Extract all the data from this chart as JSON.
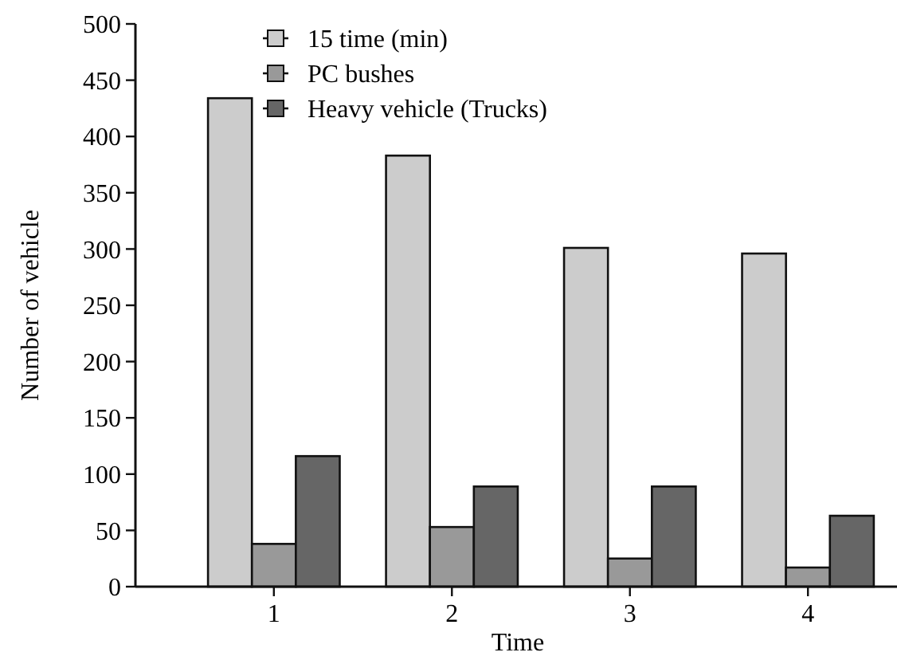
{
  "chart_data": {
    "type": "bar",
    "xlabel": "Time",
    "ylabel": "Number of vehicle",
    "categories": [
      "1",
      "2",
      "3",
      "4"
    ],
    "series": [
      {
        "name": "15 time (min)",
        "color": "#cccccc",
        "values": [
          434,
          383,
          301,
          296
        ]
      },
      {
        "name": "PC bushes",
        "color": "#999999",
        "values": [
          38,
          53,
          25,
          17
        ]
      },
      {
        "name": "Heavy vehicle (Trucks)",
        "color": "#666666",
        "values": [
          116,
          89,
          89,
          63
        ]
      }
    ],
    "ylim": [
      0,
      500
    ],
    "yticks": [
      0,
      50,
      100,
      150,
      200,
      250,
      300,
      350,
      400,
      450,
      500
    ],
    "grid": false,
    "legend": "top"
  }
}
